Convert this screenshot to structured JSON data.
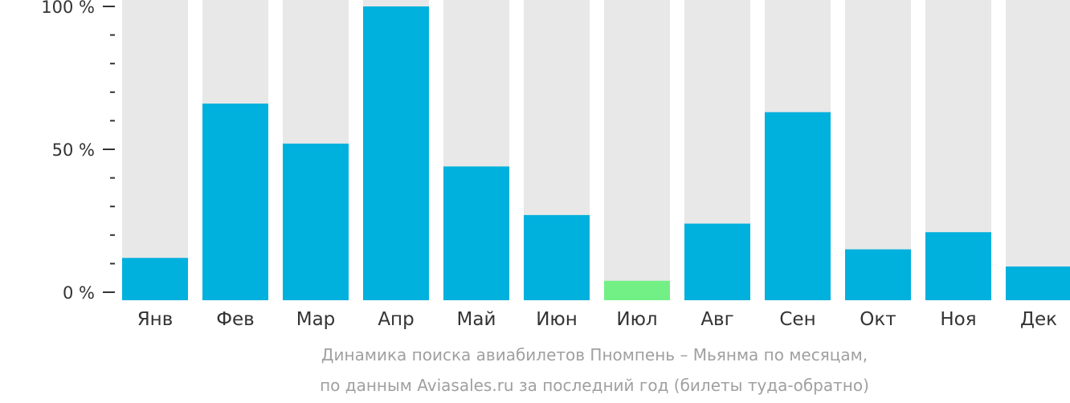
{
  "chart_data": {
    "type": "bar",
    "categories": [
      "Янв",
      "Фев",
      "Мар",
      "Апр",
      "Май",
      "Июн",
      "Июл",
      "Авг",
      "Сен",
      "Окт",
      "Ноя",
      "Дек"
    ],
    "values": [
      12,
      66,
      52,
      100,
      44,
      27,
      4,
      24,
      63,
      15,
      21,
      9
    ],
    "bar_colors": [
      "#00b0dd",
      "#00b0dd",
      "#00b0dd",
      "#00b0dd",
      "#00b0dd",
      "#00b0dd",
      "#72f086",
      "#00b0dd",
      "#00b0dd",
      "#00b0dd",
      "#00b0dd",
      "#00b0dd"
    ],
    "background_bar_color": "#e8e8e8",
    "ylim": [
      0,
      100
    ],
    "yticks": [
      {
        "value": 100,
        "label": "100 %"
      },
      {
        "value": 50,
        "label": "50 %"
      },
      {
        "value": 0,
        "label": "0 %"
      }
    ],
    "yminor_step": 10,
    "grid": false,
    "xlabel": "",
    "ylabel": ""
  },
  "caption": {
    "line1": "Динамика поиска авиабилетов Пномпень – Мьянма по месяцам,",
    "line2": "по данным Aviasales.ru за последний год (билеты туда-обратно)"
  }
}
